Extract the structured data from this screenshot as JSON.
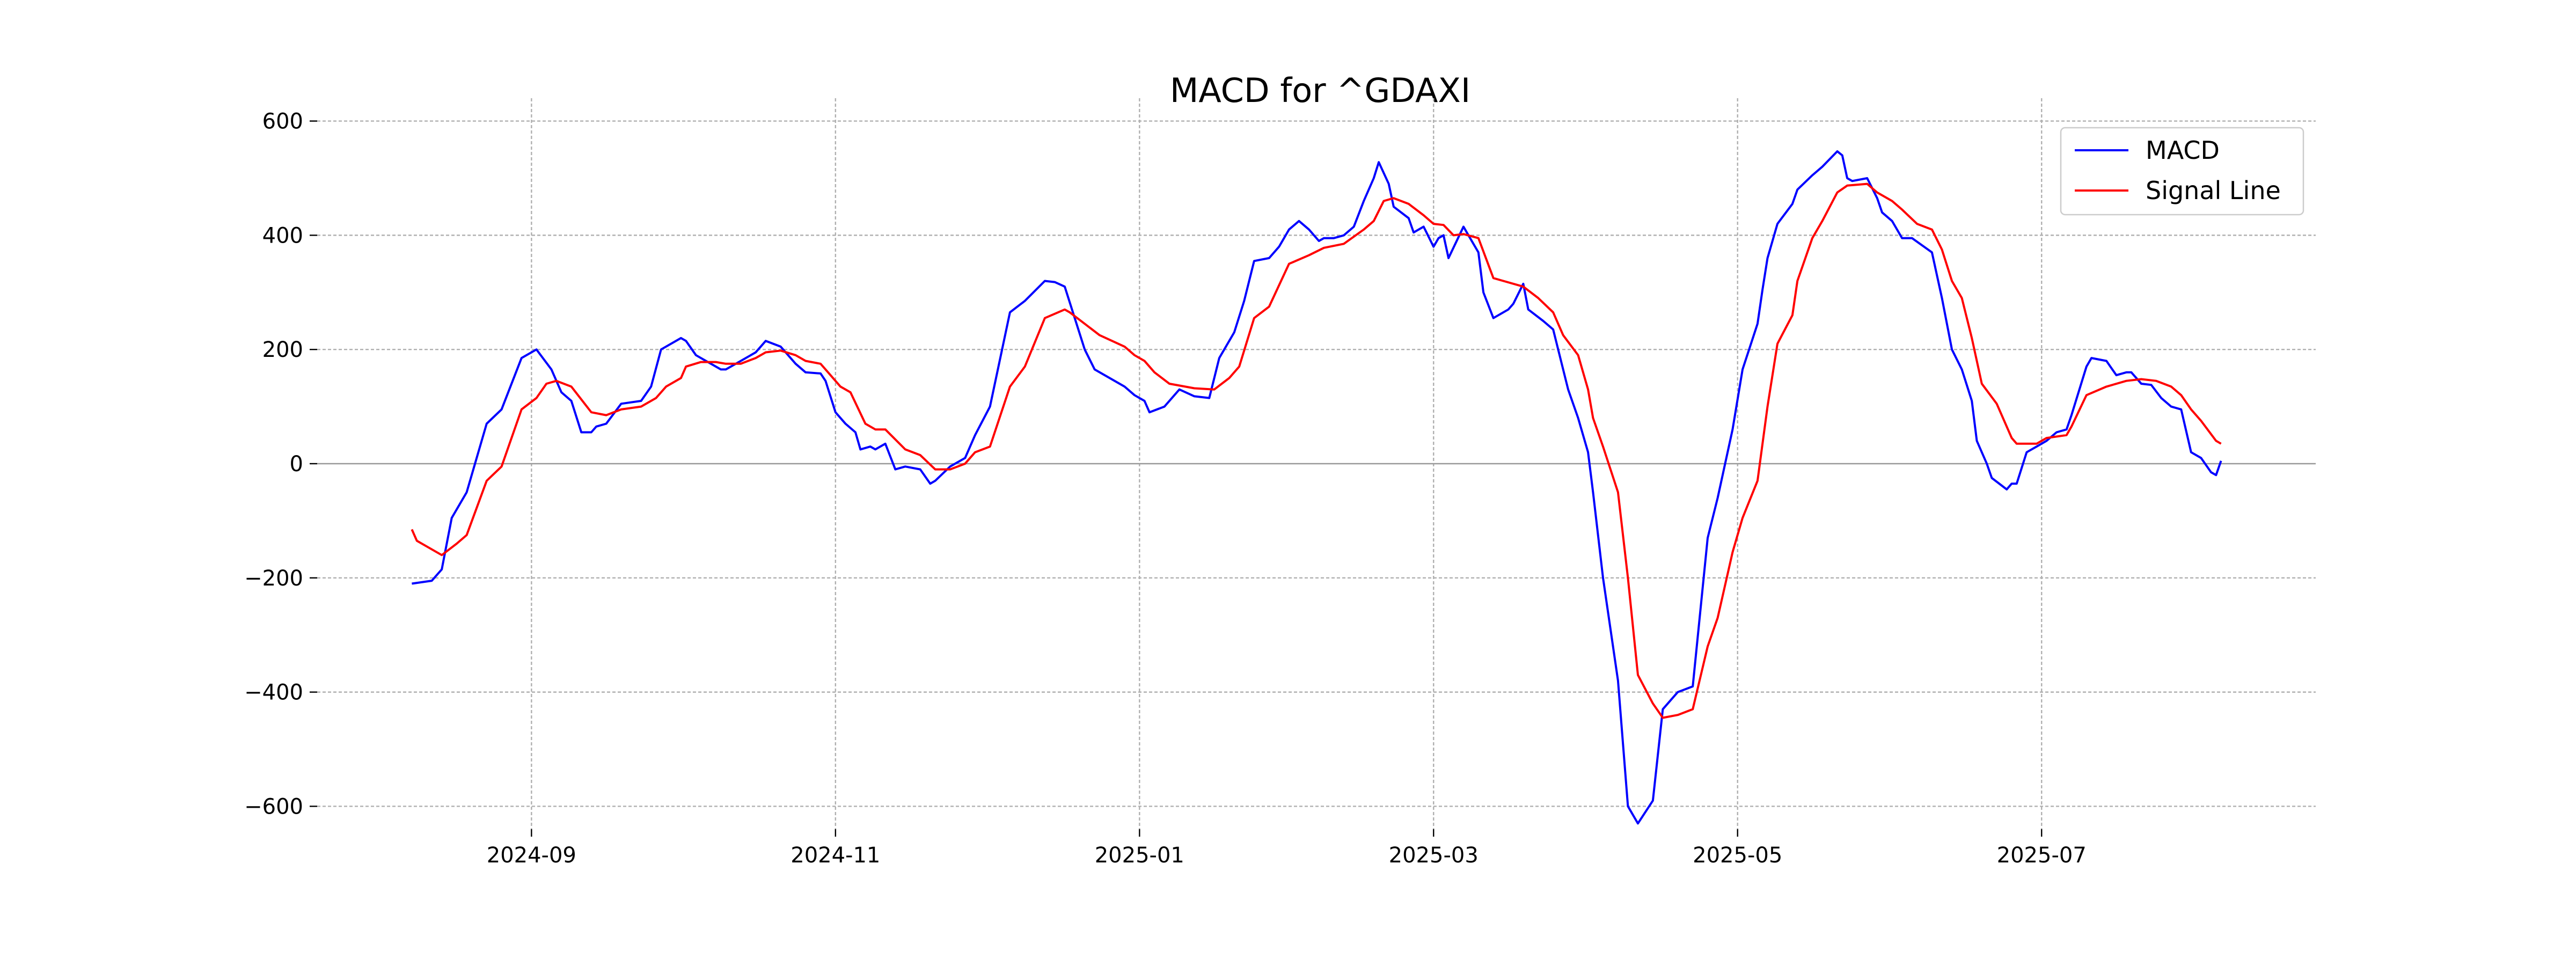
{
  "chart_data": {
    "type": "line",
    "title": "MACD for ^GDAXI",
    "xlabel": "",
    "ylabel": "",
    "x_unit": "days since 2024-09-01",
    "xlim": [
      -43,
      358
    ],
    "ylim": [
      -640,
      640
    ],
    "grid": true,
    "legend_position": "top-right",
    "x_ticks": [
      {
        "label": "2024-09",
        "value": 0
      },
      {
        "label": "2024-11",
        "value": 61
      },
      {
        "label": "2025-01",
        "value": 122
      },
      {
        "label": "2025-03",
        "value": 181
      },
      {
        "label": "2025-05",
        "value": 242
      },
      {
        "label": "2025-07",
        "value": 303
      }
    ],
    "y_ticks": [
      {
        "label": "600",
        "value": 600
      },
      {
        "label": "400",
        "value": 400
      },
      {
        "label": "200",
        "value": 200
      },
      {
        "label": "0",
        "value": 0
      },
      {
        "label": "−200",
        "value": -200
      },
      {
        "label": "−400",
        "value": -400
      },
      {
        "label": "−600",
        "value": -600
      }
    ],
    "series": [
      {
        "name": "MACD",
        "color": "#0000ff",
        "x": [
          -24,
          -20,
          -18,
          -16,
          -13,
          -9,
          -6,
          -2,
          1,
          4,
          6,
          8,
          10,
          12,
          13,
          15,
          18,
          22,
          24,
          26,
          30,
          31,
          33,
          35,
          38,
          39,
          42,
          45,
          47,
          50,
          53,
          55,
          58,
          59,
          61,
          63,
          65,
          66,
          68,
          69,
          71,
          73,
          75,
          78,
          80,
          81,
          84,
          87,
          89,
          92,
          96,
          99,
          103,
          105,
          107,
          111,
          113,
          116,
          119,
          121,
          123,
          124,
          127,
          130,
          133,
          136,
          138,
          141,
          143,
          145,
          148,
          150,
          152,
          154,
          156,
          158,
          159,
          161,
          163,
          165,
          167,
          169,
          170,
          172,
          173,
          176,
          177,
          179,
          181,
          182,
          183,
          184,
          187,
          188,
          190,
          191,
          193,
          196,
          197,
          199,
          200,
          203,
          205,
          208,
          210,
          212,
          213,
          215,
          218,
          220,
          222,
          225,
          227,
          230,
          233,
          236,
          238,
          241,
          243,
          246,
          247,
          248,
          250,
          253,
          254,
          257,
          259,
          262,
          263,
          264,
          265,
          268,
          270,
          271,
          273,
          275,
          277,
          281,
          283,
          285,
          287,
          289,
          290,
          292,
          293,
          296,
          297,
          298,
          300,
          302,
          304,
          306,
          308,
          309,
          312,
          313,
          316,
          318,
          320,
          321,
          323,
          325,
          327,
          329,
          331,
          333,
          335,
          337,
          338,
          339
        ],
        "values": [
          -210,
          -205,
          -185,
          -95,
          -50,
          70,
          95,
          185,
          200,
          165,
          125,
          110,
          55,
          55,
          65,
          70,
          105,
          110,
          135,
          200,
          220,
          215,
          190,
          180,
          165,
          165,
          180,
          195,
          215,
          205,
          175,
          160,
          158,
          145,
          90,
          70,
          55,
          25,
          30,
          25,
          35,
          -10,
          -5,
          -10,
          -35,
          -30,
          -5,
          10,
          50,
          100,
          265,
          285,
          320,
          318,
          310,
          200,
          165,
          150,
          135,
          120,
          110,
          90,
          100,
          130,
          118,
          115,
          185,
          230,
          285,
          355,
          360,
          380,
          410,
          425,
          410,
          390,
          395,
          395,
          400,
          415,
          460,
          500,
          528,
          490,
          450,
          430,
          405,
          415,
          380,
          395,
          400,
          360,
          415,
          400,
          370,
          300,
          255,
          270,
          280,
          315,
          270,
          250,
          235,
          130,
          80,
          20,
          -50,
          -200,
          -380,
          -600,
          -630,
          -590,
          -430,
          -400,
          -390,
          -130,
          -60,
          60,
          165,
          245,
          305,
          360,
          420,
          455,
          480,
          505,
          520,
          547,
          540,
          500,
          495,
          500,
          465,
          440,
          425,
          395,
          395,
          370,
          290,
          200,
          165,
          110,
          40,
          0,
          -25,
          -45,
          -35,
          -35,
          20,
          30,
          40,
          55,
          60,
          85,
          170,
          185,
          180,
          155,
          160,
          160,
          140,
          138,
          115,
          100,
          95,
          20,
          10,
          -15,
          -20,
          5
        ]
      },
      {
        "name": "Signal Line",
        "color": "#ff0000",
        "x": [
          -24,
          -23,
          -21,
          -18,
          -15,
          -13,
          -9,
          -6,
          -2,
          1,
          3,
          5,
          8,
          12,
          15,
          18,
          22,
          25,
          27,
          30,
          31,
          34,
          37,
          39,
          42,
          45,
          47,
          50,
          53,
          55,
          58,
          59,
          62,
          64,
          67,
          69,
          71,
          75,
          78,
          81,
          84,
          87,
          89,
          92,
          96,
          99,
          103,
          107,
          108,
          111,
          114,
          119,
          121,
          123,
          125,
          128,
          133,
          137,
          140,
          142,
          145,
          148,
          152,
          156,
          159,
          163,
          167,
          169,
          171,
          173,
          176,
          179,
          181,
          183,
          185,
          187,
          190,
          193,
          195,
          199,
          202,
          205,
          207,
          210,
          212,
          213,
          215,
          218,
          220,
          222,
          225,
          227,
          230,
          233,
          236,
          238,
          241,
          243,
          246,
          248,
          250,
          253,
          254,
          257,
          259,
          262,
          264,
          268,
          270,
          273,
          275,
          278,
          281,
          283,
          285,
          287,
          289,
          291,
          294,
          297,
          298,
          302,
          304,
          308,
          309,
          312,
          316,
          320,
          323,
          326,
          329,
          331,
          333,
          335,
          338,
          339
        ],
        "values": [
          -115,
          -135,
          -145,
          -160,
          -140,
          -125,
          -30,
          -5,
          95,
          115,
          140,
          145,
          135,
          90,
          85,
          95,
          100,
          115,
          135,
          150,
          170,
          178,
          178,
          175,
          175,
          185,
          195,
          198,
          190,
          180,
          175,
          165,
          135,
          125,
          70,
          60,
          60,
          25,
          15,
          -10,
          -10,
          0,
          20,
          30,
          135,
          170,
          255,
          270,
          265,
          245,
          225,
          205,
          190,
          180,
          160,
          140,
          132,
          130,
          150,
          170,
          255,
          275,
          350,
          365,
          378,
          385,
          410,
          425,
          460,
          465,
          455,
          435,
          420,
          418,
          400,
          402,
          395,
          325,
          320,
          310,
          290,
          265,
          225,
          190,
          130,
          80,
          30,
          -50,
          -200,
          -370,
          -420,
          -445,
          -440,
          -430,
          -320,
          -270,
          -155,
          -95,
          -30,
          100,
          210,
          260,
          320,
          395,
          425,
          475,
          487,
          490,
          475,
          460,
          445,
          420,
          410,
          375,
          320,
          290,
          220,
          140,
          105,
          45,
          35,
          35,
          45,
          50,
          65,
          120,
          135,
          145,
          148,
          145,
          135,
          120,
          95,
          75,
          40,
          35
        ]
      }
    ]
  }
}
